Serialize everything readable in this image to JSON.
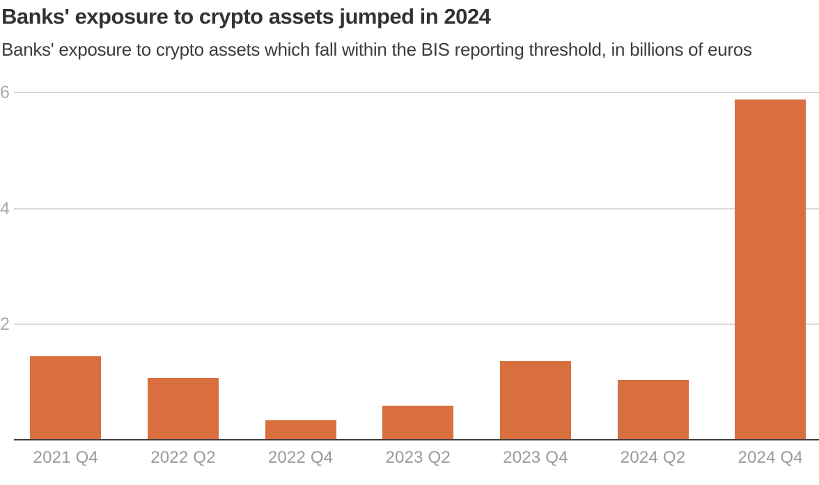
{
  "header": {
    "title": "Banks' exposure to crypto assets jumped in 2024",
    "subtitle": "Banks' exposure to crypto assets which fall within the BIS reporting threshold, in billions of euros"
  },
  "chart_data": {
    "type": "bar",
    "title": "Banks' exposure to crypto assets jumped in 2024",
    "subtitle": "Banks' exposure to crypto assets which fall within the BIS reporting threshold, in billions of euros",
    "categories": [
      "2021 Q4",
      "2022 Q2",
      "2022 Q4",
      "2023 Q2",
      "2023 Q4",
      "2024 Q2",
      "2024 Q4"
    ],
    "values": [
      1.45,
      1.07,
      0.34,
      0.59,
      1.36,
      1.03,
      5.89
    ],
    "xlabel": "",
    "ylabel": "",
    "ylim": [
      0,
      6
    ],
    "yticks": [
      2,
      4,
      6
    ],
    "grid": true,
    "legend": false,
    "colors": {
      "bar": "#D96F3F",
      "gridline": "#D8D8D8",
      "axis": "#3C3C3C",
      "y_tick_label": "#ABABAB",
      "x_tick_label": "#9A9A9A",
      "title": "#323232",
      "subtitle": "#3D3D3D"
    }
  }
}
